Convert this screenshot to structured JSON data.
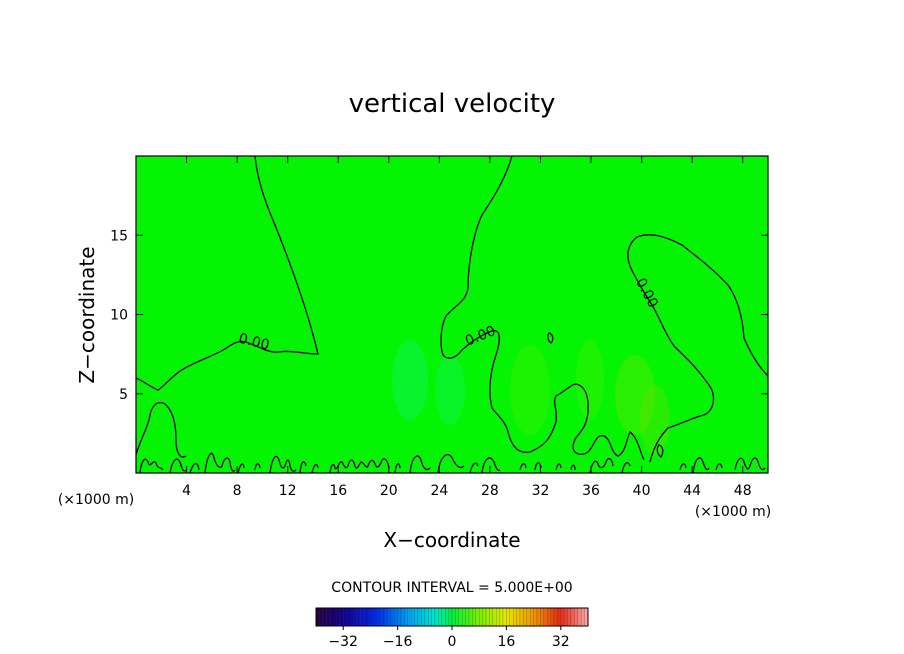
{
  "chart_data": {
    "type": "contour",
    "title": "vertical velocity",
    "xlabel": "X−coordinate",
    "ylabel": "Z−coordinate",
    "x_unit_left": "(×1000 m)",
    "x_unit_right": "(×1000 m)",
    "xlim": [
      0,
      50
    ],
    "ylim": [
      0,
      20
    ],
    "x_ticks": [
      4,
      8,
      12,
      16,
      20,
      24,
      28,
      32,
      36,
      40,
      44,
      48
    ],
    "x_tick_labels": [
      "4",
      "8",
      "12",
      "16",
      "20",
      "24",
      "28",
      "32",
      "36",
      "40",
      "44",
      "48"
    ],
    "y_ticks": [
      5,
      10,
      15
    ],
    "y_tick_labels": [
      "5",
      "10",
      "15"
    ],
    "contour_interval_text": "CONTOUR INTERVAL = 5.000E+00",
    "contour_labels": [
      {
        "text": "0.00",
        "x": 9.3,
        "z": 8.1
      },
      {
        "text": "0.00",
        "x": 27.1,
        "z": 8.3
      },
      {
        "text": "0.00",
        "x": 39.3,
        "z": 11.3
      }
    ],
    "colorbar": {
      "min": -40,
      "max": 40,
      "ticks": [
        -32,
        -16,
        0,
        16,
        32
      ],
      "tick_labels": [
        "−32",
        "−16",
        "0",
        "16",
        "32"
      ]
    },
    "field_color": "#00ff00"
  }
}
